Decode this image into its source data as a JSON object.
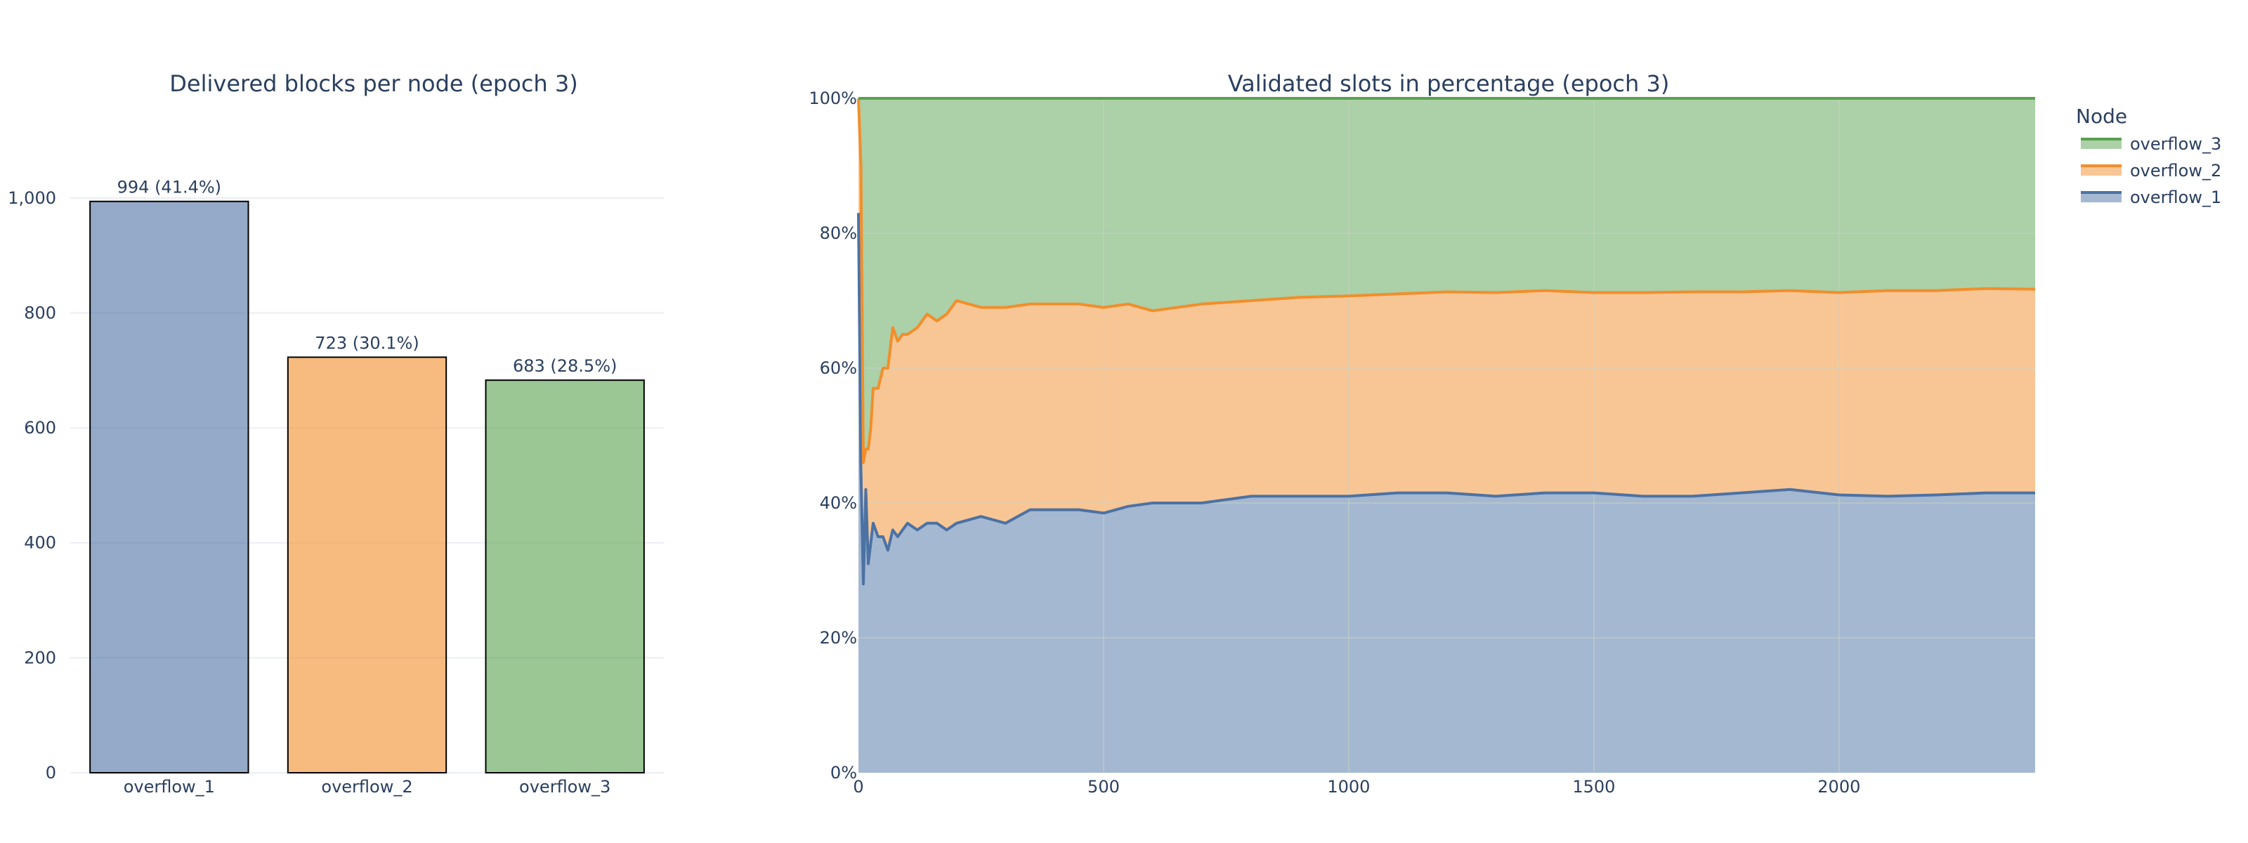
{
  "colors": {
    "overflow_1": "#4c72a4",
    "overflow_2": "#f28e2b",
    "overflow_3": "#59a14f",
    "text": "#2a3f5f"
  },
  "chart_data": [
    {
      "type": "bar",
      "title": "Delivered blocks per node (epoch 3)",
      "categories": [
        "overflow_1",
        "overflow_2",
        "overflow_3"
      ],
      "values": [
        994,
        723,
        683
      ],
      "data_labels": [
        "994 (41.4%)",
        "723 (30.1%)",
        "683 (28.5%)"
      ],
      "yticks": [
        0,
        200,
        400,
        600,
        800,
        1000
      ],
      "ytick_labels": [
        "0",
        "200",
        "400",
        "600",
        "800",
        "1,000"
      ],
      "ylim": [
        0,
        1100
      ],
      "grid": true,
      "legend": false
    },
    {
      "type": "area",
      "stacked": true,
      "normalized": "percent",
      "title": "Validated slots in percentage (epoch 3)",
      "xlim": [
        0,
        2400
      ],
      "xticks": [
        0,
        500,
        1000,
        1500,
        2000
      ],
      "xtick_labels": [
        "0",
        "500",
        "1000",
        "1500",
        "2000"
      ],
      "ylim": [
        0,
        100
      ],
      "yticks": [
        0,
        20,
        40,
        60,
        80,
        100
      ],
      "ytick_labels": [
        "0%",
        "20%",
        "40%",
        "60%",
        "80%",
        "100%"
      ],
      "grid": true,
      "legend": {
        "title": "Node",
        "placement": "top-right",
        "entries": [
          "overflow_3",
          "overflow_2",
          "overflow_1"
        ]
      },
      "x": [
        0,
        5,
        10,
        15,
        20,
        25,
        30,
        40,
        50,
        60,
        70,
        80,
        90,
        100,
        120,
        140,
        160,
        180,
        200,
        250,
        300,
        350,
        400,
        450,
        500,
        550,
        600,
        700,
        800,
        900,
        1000,
        1100,
        1200,
        1300,
        1400,
        1500,
        1600,
        1700,
        1800,
        1900,
        2000,
        2100,
        2200,
        2300,
        2400
      ],
      "series": [
        {
          "name": "overflow_1",
          "values": [
            83,
            45,
            28,
            42,
            31,
            34,
            37,
            35,
            35,
            33,
            36,
            35,
            36,
            37,
            36,
            37,
            37,
            36,
            37,
            38,
            37,
            39,
            39,
            39,
            38.5,
            39.5,
            40,
            40,
            41,
            41,
            41,
            41.5,
            41.5,
            41,
            41.5,
            41.5,
            41,
            41,
            41.5,
            42,
            41.2,
            41,
            41.2,
            41.5,
            41.5
          ]
        },
        {
          "name": "overflow_2",
          "values": [
            17,
            45,
            18,
            6,
            17,
            17,
            20,
            22,
            25,
            27,
            30,
            29,
            29,
            28,
            30,
            31,
            30,
            32,
            33,
            31,
            32,
            30.5,
            30.5,
            30.5,
            30.5,
            30,
            28.5,
            29.5,
            29,
            29.5,
            29.7,
            29.5,
            29.8,
            30.2,
            30,
            29.7,
            30.2,
            30.3,
            29.8,
            29.5,
            30,
            30.5,
            30.3,
            30.3,
            30.2
          ]
        },
        {
          "name": "overflow_3",
          "values": [
            0,
            10,
            54,
            52,
            52,
            49,
            43,
            43,
            40,
            40,
            34,
            36,
            35,
            35,
            34,
            32,
            33,
            32,
            30,
            31,
            31,
            30.5,
            30.5,
            30.5,
            31,
            30.5,
            31.5,
            30.5,
            30,
            29.5,
            29.3,
            29,
            28.7,
            28.8,
            28.5,
            28.8,
            28.8,
            28.7,
            28.7,
            28.5,
            28.8,
            28.5,
            28.5,
            28.2,
            28.3
          ]
        }
      ]
    }
  ]
}
